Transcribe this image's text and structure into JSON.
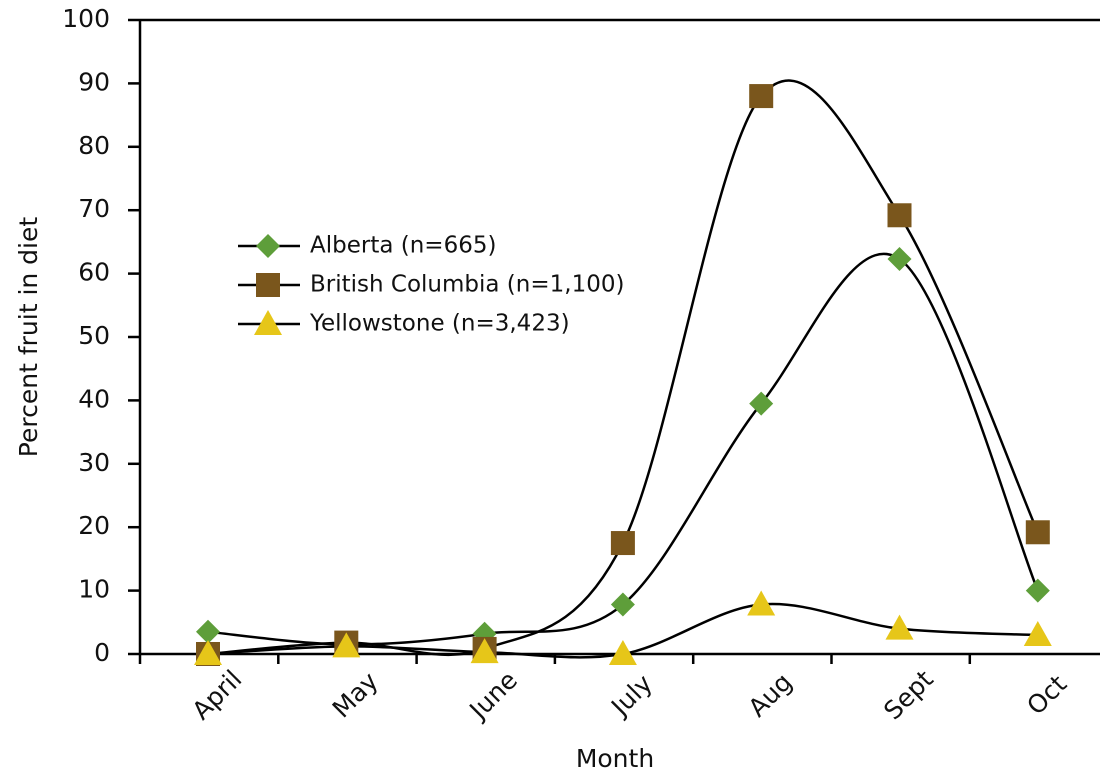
{
  "chart_data": {
    "type": "line",
    "x_label": "Month",
    "y_label": "Percent fruit in diet",
    "categories": [
      "April",
      "May",
      "June",
      "July",
      "Aug",
      "Sept",
      "Oct"
    ],
    "series": [
      {
        "name": "Alberta (n=665)",
        "color": "#5e9e3a",
        "marker": "diamond",
        "values": [
          3.5,
          1.5,
          3.2,
          7.8,
          39.5,
          62.3,
          10
        ]
      },
      {
        "name": "British Columbia (n=1,100)",
        "color": "#7a561c",
        "marker": "square",
        "values": [
          0,
          1.8,
          0.8,
          17.5,
          88,
          69.2,
          19.2
        ]
      },
      {
        "name": "Yellowstone (n=3,423)",
        "color": "#e6c619",
        "marker": "triangle",
        "values": [
          0,
          1.2,
          0.3,
          0,
          7.8,
          4,
          3
        ]
      }
    ],
    "line_color": "#000000",
    "smooth": true,
    "ylim": [
      0,
      100
    ],
    "yticks": [
      0,
      10,
      20,
      30,
      40,
      50,
      60,
      70,
      80,
      90,
      100
    ],
    "grid": false
  }
}
